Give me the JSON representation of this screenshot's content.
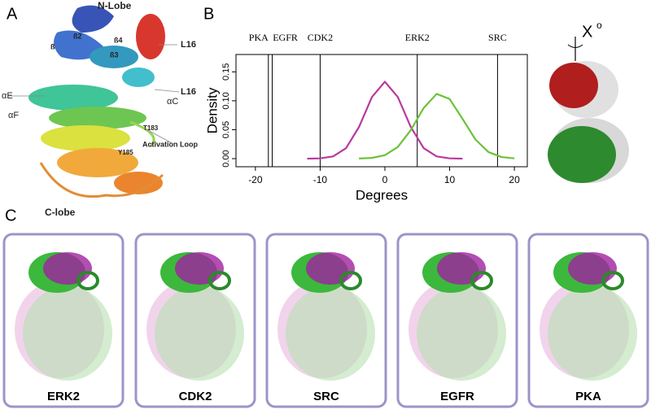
{
  "panel_labels": [
    "A",
    "B",
    "C"
  ],
  "panel_a": {
    "labels": [
      "N-Lobe",
      "ß2",
      "ß",
      "ß4",
      "ß3",
      "L16",
      "αC",
      "L16",
      "αE",
      "αF",
      "T183",
      "Y185",
      "Activation Loop",
      "C-lobe"
    ]
  },
  "chart_data": {
    "type": "line",
    "xlabel": "Degrees",
    "ylabel": "Density",
    "xlim": [
      -23,
      22
    ],
    "ylim": [
      -0.014,
      0.18
    ],
    "xticks": [
      -20,
      -10,
      0,
      10,
      20
    ],
    "yticks": [
      {
        "value": 0,
        "label": "0.00"
      },
      0.05,
      {
        "value": 0.1,
        "label": "0.10"
      },
      0.15
    ],
    "reference_lines": [
      {
        "name": "PKA",
        "x": -18
      },
      {
        "name": "EGFR",
        "x": -17.4
      },
      {
        "name": "CDK2",
        "x": -10
      },
      {
        "name": "ERK2",
        "x": 5
      },
      {
        "name": "SRC",
        "x": 17.4
      }
    ],
    "series": [
      {
        "color": "#b8399e",
        "x": [
          -12,
          -10,
          -8,
          -6,
          -4,
          -2,
          0,
          2,
          4,
          6,
          8,
          10,
          12
        ],
        "values": [
          0.0,
          0.0005,
          0.0038,
          0.018,
          0.0547,
          0.1065,
          0.133,
          0.1065,
          0.0547,
          0.018,
          0.0038,
          0.0005,
          0.0
        ]
      },
      {
        "color": "#6cc23a",
        "x": [
          -4,
          -2,
          0,
          2,
          4,
          6,
          8,
          10,
          12,
          14,
          16,
          18,
          20
        ],
        "values": [
          0.0002,
          0.0013,
          0.0059,
          0.0202,
          0.0494,
          0.0876,
          0.1119,
          0.1031,
          0.0686,
          0.0329,
          0.0114,
          0.0028,
          0.0005
        ]
      }
    ]
  },
  "panel_b_structure": {
    "angle_label": "X",
    "angle_unit": "o"
  },
  "panel_c": {
    "kinases": [
      "ERK2",
      "CDK2",
      "SRC",
      "EGFR",
      "PKA"
    ]
  }
}
